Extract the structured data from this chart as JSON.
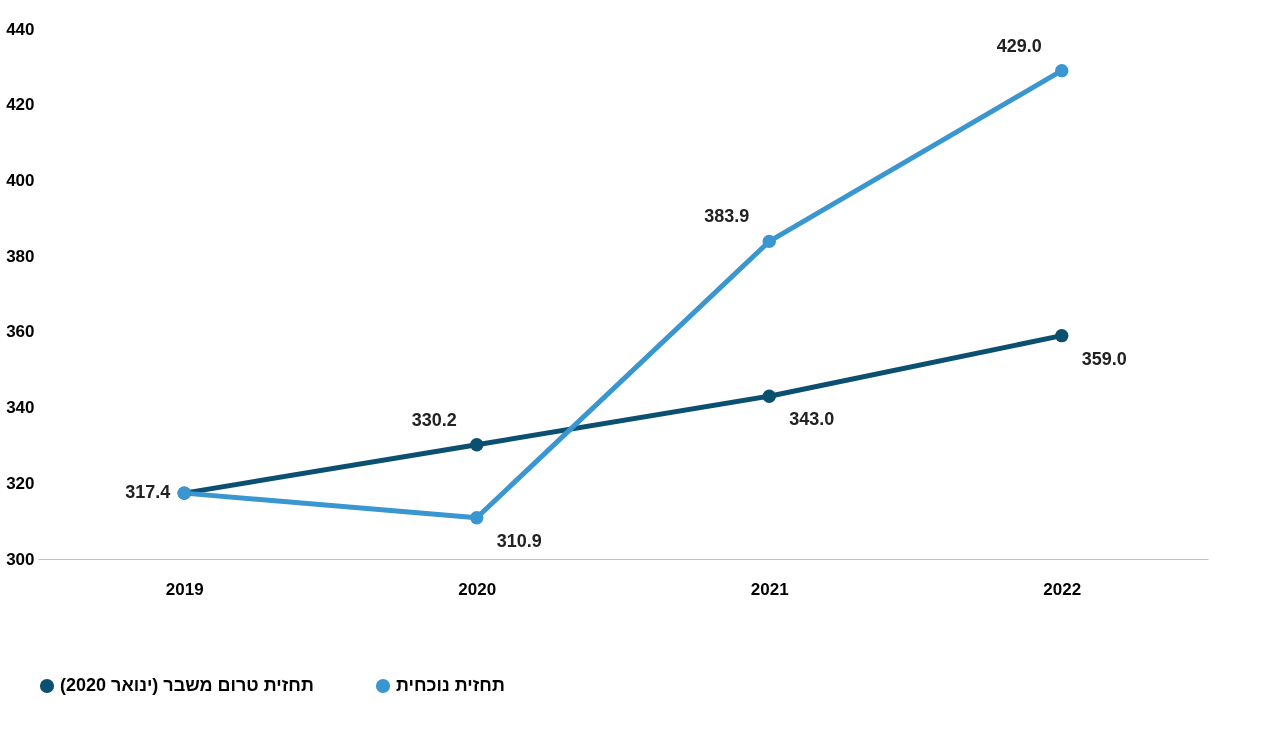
{
  "chart_data": {
    "type": "line",
    "categories": [
      "2019",
      "2020",
      "2021",
      "2022"
    ],
    "series": [
      {
        "name": "תחזית טרום משבר (ינואר 2020)",
        "color": "#0b4f71",
        "values": [
          317.4,
          330.2,
          343.0,
          359.0
        ],
        "value_labels": [
          "317.4",
          "330.2",
          "343.0",
          "359.0"
        ]
      },
      {
        "name": "תחזית נוכחית",
        "color": "#3a96d0",
        "values": [
          317.4,
          310.9,
          383.9,
          429.0
        ],
        "value_labels": [
          null,
          "310.9",
          "383.9",
          "429.0"
        ]
      }
    ],
    "ylim": [
      300,
      440
    ],
    "yticks": [
      300,
      320,
      340,
      360,
      380,
      400,
      420,
      440
    ],
    "grid": false,
    "legend": "bottom",
    "marker": "circle",
    "line_style": "solid"
  }
}
